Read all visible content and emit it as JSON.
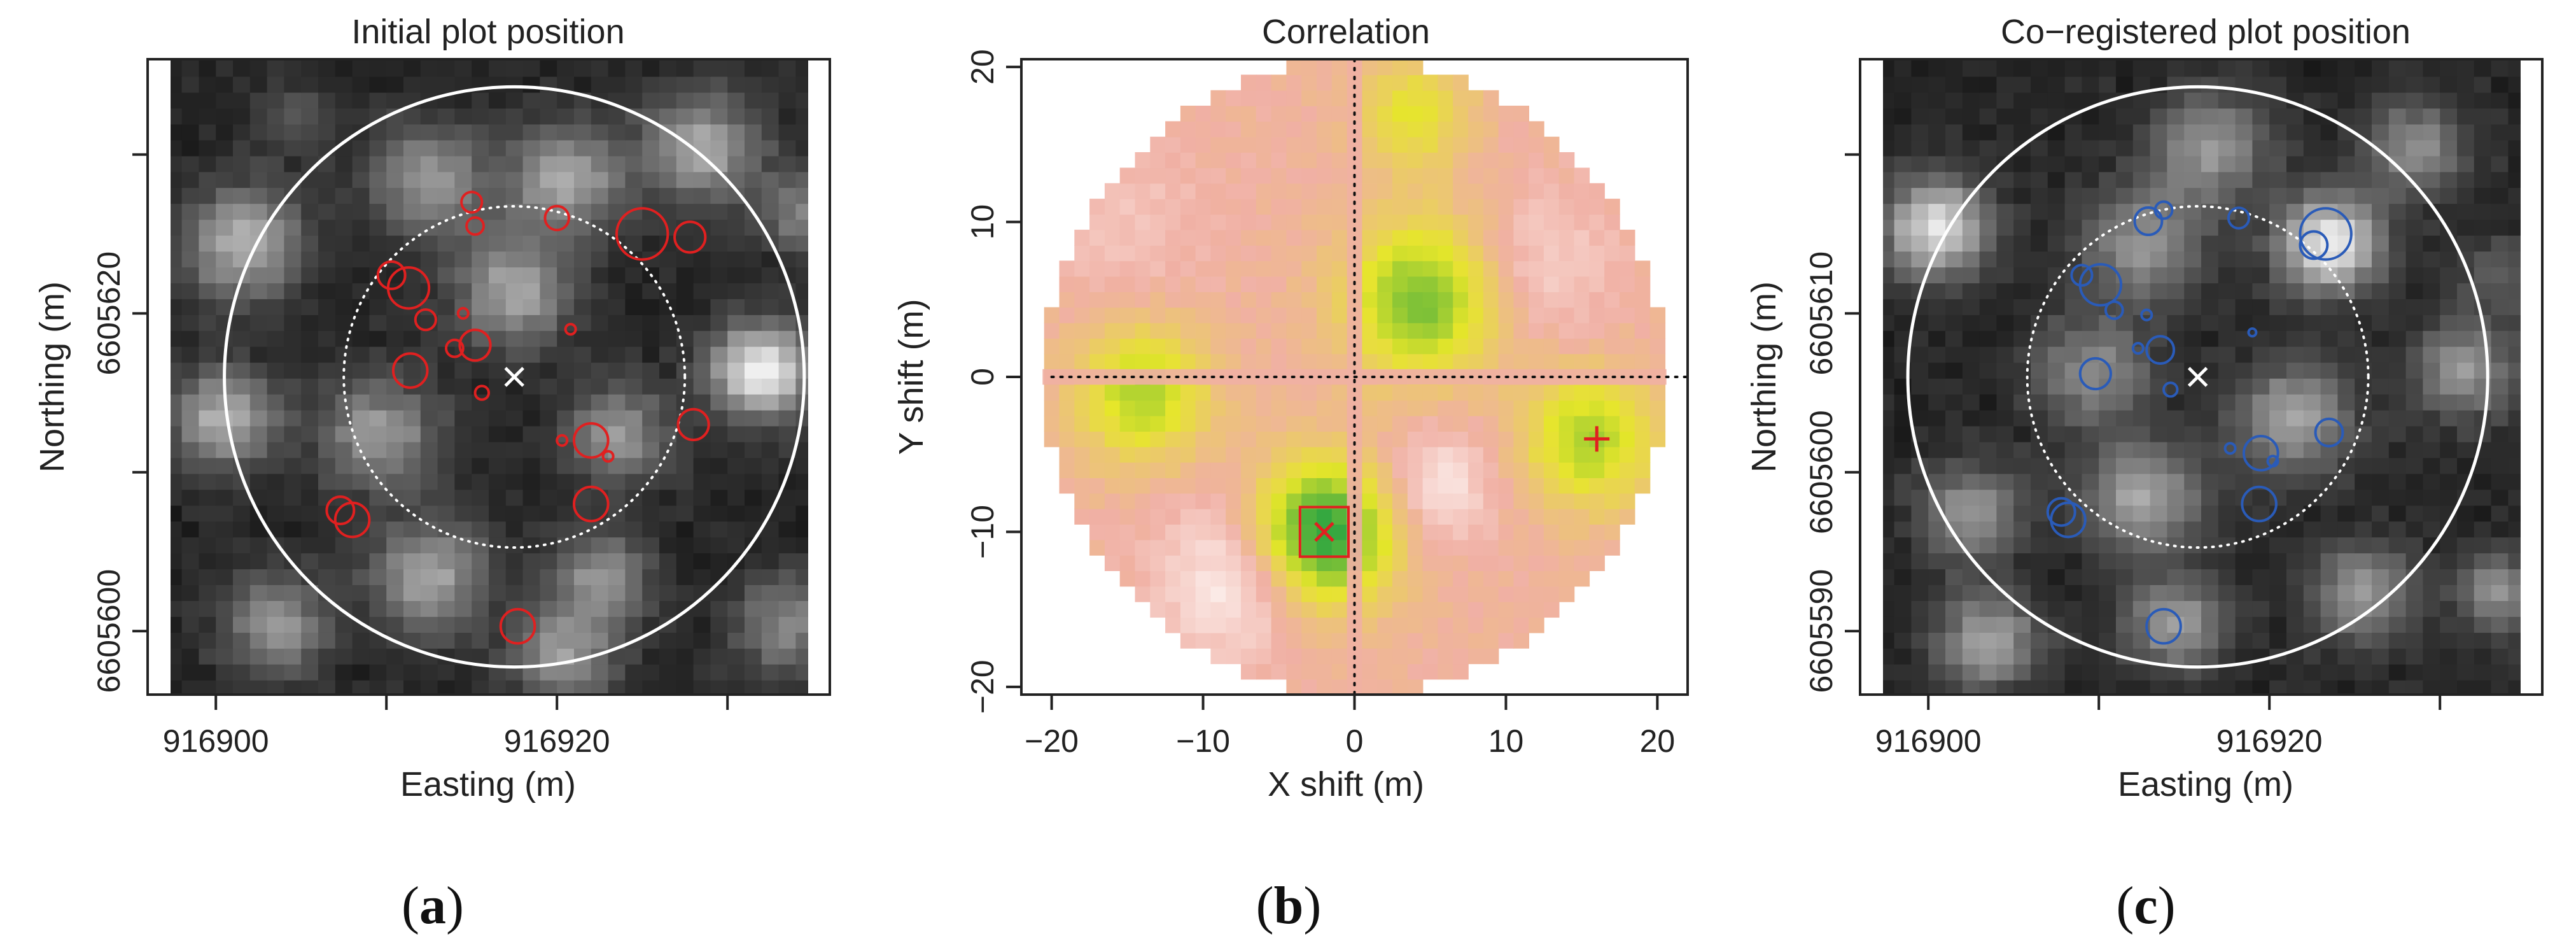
{
  "figure": {
    "panel_labels": [
      {
        "open": "(",
        "letter": "a",
        "close": ")"
      },
      {
        "open": "(",
        "letter": "b",
        "close": ")"
      },
      {
        "open": "(",
        "letter": "c",
        "close": ")"
      }
    ]
  },
  "colors": {
    "red_markers": "#e02020",
    "blue_markers": "#2a5bb8",
    "white_overlay": "#ffffff",
    "frame": "#222222",
    "dotted_axis": "#111111"
  },
  "chart_data": [
    {
      "type": "scatter",
      "title": "Initial plot position",
      "xlabel": "Easting (m)",
      "ylabel": "Northing (m)",
      "xlim": [
        916896,
        916936
      ],
      "ylim": [
        6605596,
        6605636
      ],
      "xticks": [
        916900,
        916910,
        916920,
        916930
      ],
      "xtick_labels": [
        "916900",
        "",
        "916920",
        ""
      ],
      "yticks": [
        6605600,
        6605610,
        6605620,
        6605630
      ],
      "ytick_labels": [
        "6605600",
        "",
        "6605620",
        ""
      ],
      "background": "grayscale canopy height raster",
      "grid": false,
      "overlay": {
        "plot_center": [
          916917.5,
          6605616
        ],
        "outer_circle_radius_m": 17,
        "inner_dotted_circle_radius_m": 10,
        "center_marker": "x"
      },
      "trees": [
        {
          "x": 916925,
          "y": 6605625,
          "r_m": 1.5
        },
        {
          "x": 916920,
          "y": 6605626,
          "r_m": 0.7
        },
        {
          "x": 916915,
          "y": 6605627,
          "r_m": 0.6
        },
        {
          "x": 916915.2,
          "y": 6605625.5,
          "r_m": 0.5
        },
        {
          "x": 916910.3,
          "y": 6605622.4,
          "r_m": 0.8
        },
        {
          "x": 916911.3,
          "y": 6605621.6,
          "r_m": 1.2
        },
        {
          "x": 916912.3,
          "y": 6605619.6,
          "r_m": 0.6
        },
        {
          "x": 916914.5,
          "y": 6605620,
          "r_m": 0.3
        },
        {
          "x": 916914,
          "y": 6605617.8,
          "r_m": 0.5
        },
        {
          "x": 916915.2,
          "y": 6605618,
          "r_m": 0.9
        },
        {
          "x": 916911.4,
          "y": 6605616.4,
          "r_m": 1.0
        },
        {
          "x": 916915.6,
          "y": 6605615,
          "r_m": 0.4
        },
        {
          "x": 916920.8,
          "y": 6605619,
          "r_m": 0.3
        },
        {
          "x": 916927.8,
          "y": 6605624.8,
          "r_m": 0.9
        },
        {
          "x": 916928,
          "y": 6605613,
          "r_m": 0.9
        },
        {
          "x": 916922,
          "y": 6605612,
          "r_m": 1.0
        },
        {
          "x": 916920.3,
          "y": 6605612,
          "r_m": 0.3
        },
        {
          "x": 916923,
          "y": 6605611,
          "r_m": 0.3
        },
        {
          "x": 916922,
          "y": 6605608,
          "r_m": 1.0
        },
        {
          "x": 916907.3,
          "y": 6605607.6,
          "r_m": 0.8
        },
        {
          "x": 916908,
          "y": 6605607,
          "r_m": 1.0
        },
        {
          "x": 916917.7,
          "y": 6605600.3,
          "r_m": 1.0
        }
      ]
    },
    {
      "type": "heatmap",
      "title": "Correlation",
      "xlabel": "X shift (m)",
      "ylabel": "Y shift (m)",
      "xlim": [
        -22,
        22
      ],
      "ylim": [
        -20.5,
        20.5
      ],
      "xticks": [
        -20,
        -10,
        0,
        10,
        20
      ],
      "yticks": [
        -20,
        -10,
        0,
        10,
        20
      ],
      "mask_radius_m": 20,
      "colormap": [
        "#ffffff",
        "#f0b0a4",
        "#e6e62a",
        "#35a840"
      ],
      "peaks": [
        {
          "x": -2,
          "y": -10,
          "strength": 1.0,
          "sigma": 3.2
        },
        {
          "x": 4.5,
          "y": 5,
          "strength": 0.75,
          "sigma": 3.5
        },
        {
          "x": -14,
          "y": -1,
          "strength": 0.6,
          "sigma": 3.0
        },
        {
          "x": 15.5,
          "y": -4,
          "strength": 0.6,
          "sigma": 3.0
        },
        {
          "x": 4,
          "y": 17,
          "strength": 0.4,
          "sigma": 2.5
        }
      ],
      "lows": [
        {
          "x": -8,
          "y": -13,
          "strength": 0.7,
          "sigma": 3.5
        },
        {
          "x": 5.5,
          "y": -7,
          "strength": 0.6,
          "sigma": 2.6
        },
        {
          "x": 12,
          "y": 7,
          "strength": 0.4,
          "sigma": 3.5
        },
        {
          "x": -15,
          "y": 10,
          "strength": 0.25,
          "sigma": 4.0
        }
      ],
      "max_marker": {
        "x": -2,
        "y": -10,
        "symbol": "x",
        "box_half_size_m": 1.6
      },
      "secondary_marker": {
        "x": 16,
        "y": -4,
        "symbol": "+"
      },
      "zero_lines": {
        "x": 0,
        "y": 0,
        "style": "dotted"
      }
    },
    {
      "type": "scatter",
      "title": "Co−registered plot position",
      "xlabel": "Easting (m)",
      "ylabel": "Northing (m)",
      "xlim": [
        916896,
        916936
      ],
      "ylim": [
        6605586,
        6605626
      ],
      "xticks": [
        916900,
        916910,
        916920,
        916930
      ],
      "xtick_labels": [
        "916900",
        "",
        "916920",
        ""
      ],
      "yticks": [
        6605590,
        6605600,
        6605610,
        6605620
      ],
      "ytick_labels": [
        "6605590",
        "6605600",
        "6605610",
        ""
      ],
      "background": "grayscale canopy height raster",
      "grid": false,
      "overlay": {
        "plot_center": [
          916915.8,
          6605606
        ],
        "outer_circle_radius_m": 17,
        "inner_dotted_circle_radius_m": 10,
        "center_marker": "x"
      },
      "trees": [
        {
          "x": 916923.3,
          "y": 6605615,
          "r_m": 1.5
        },
        {
          "x": 916918.2,
          "y": 6605616,
          "r_m": 0.6
        },
        {
          "x": 916913.8,
          "y": 6605616.5,
          "r_m": 0.5
        },
        {
          "x": 916912.9,
          "y": 6605615.8,
          "r_m": 0.8
        },
        {
          "x": 916909,
          "y": 6605612.4,
          "r_m": 0.6
        },
        {
          "x": 916910.1,
          "y": 6605611.8,
          "r_m": 1.2
        },
        {
          "x": 916910.9,
          "y": 6605610.2,
          "r_m": 0.5
        },
        {
          "x": 916912.8,
          "y": 6605609.9,
          "r_m": 0.3
        },
        {
          "x": 916912.3,
          "y": 6605607.8,
          "r_m": 0.3
        },
        {
          "x": 916913.6,
          "y": 6605607.7,
          "r_m": 0.8
        },
        {
          "x": 916909.8,
          "y": 6605606.2,
          "r_m": 0.9
        },
        {
          "x": 916914.2,
          "y": 6605605.2,
          "r_m": 0.4
        },
        {
          "x": 916919,
          "y": 6605608.8,
          "r_m": 0.2
        },
        {
          "x": 916922.6,
          "y": 6605614.3,
          "r_m": 0.8
        },
        {
          "x": 916923.5,
          "y": 6605602.5,
          "r_m": 0.8
        },
        {
          "x": 916919.5,
          "y": 6605601.2,
          "r_m": 1.0
        },
        {
          "x": 916917.7,
          "y": 6605601.5,
          "r_m": 0.3
        },
        {
          "x": 916920.2,
          "y": 6605600.7,
          "r_m": 0.3
        },
        {
          "x": 916919.4,
          "y": 6605598,
          "r_m": 1.0
        },
        {
          "x": 916907.8,
          "y": 6605597.5,
          "r_m": 0.8
        },
        {
          "x": 916908.2,
          "y": 6605597,
          "r_m": 1.0
        },
        {
          "x": 916913.8,
          "y": 6605590.3,
          "r_m": 1.0
        }
      ]
    }
  ]
}
